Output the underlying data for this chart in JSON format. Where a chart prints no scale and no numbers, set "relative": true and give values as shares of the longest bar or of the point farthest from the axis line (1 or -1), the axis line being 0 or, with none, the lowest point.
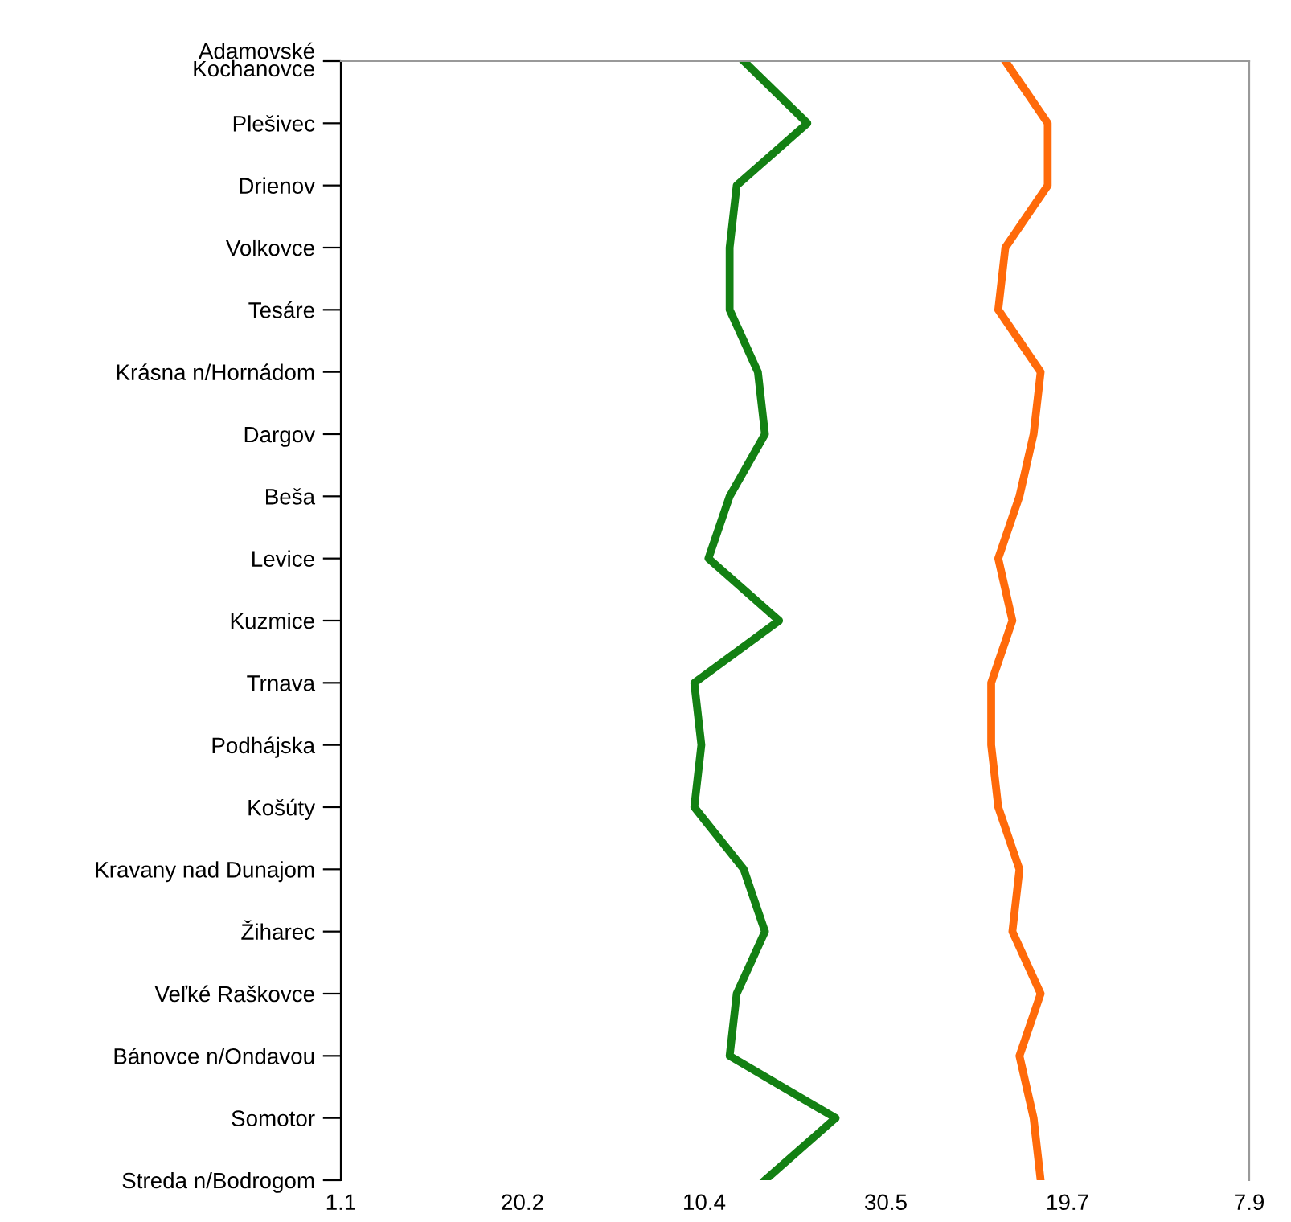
{
  "chart_data": {
    "type": "line",
    "orientation": "horizontal",
    "relative": true,
    "categories": [
      "Adamovské\nKochanovce",
      "Plešivec",
      "Drienov",
      "Volkovce",
      "Tesáre",
      "Krásna n/Hornádom",
      "Dargov",
      "Beša",
      "Levice",
      "Kuzmice",
      "Trnava",
      "Podhájska",
      "Košúty",
      "Kravany nad Dunajom",
      "Žiharec",
      "Veľké Raškovce",
      "Bánovce n/Ondavou",
      "Somotor",
      "Streda n/Bodrogom"
    ],
    "series": [
      {
        "color": "#138013",
        "values": [
          0.57,
          0.66,
          0.56,
          0.55,
          0.55,
          0.59,
          0.6,
          0.55,
          0.52,
          0.62,
          0.5,
          0.51,
          0.5,
          0.57,
          0.6,
          0.56,
          0.55,
          0.7,
          0.6
        ]
      },
      {
        "color": "#ff6a0a",
        "values": [
          0.94,
          1.0,
          1.0,
          0.94,
          0.93,
          0.99,
          0.98,
          0.96,
          0.93,
          0.95,
          0.92,
          0.92,
          0.93,
          0.96,
          0.95,
          0.99,
          0.96,
          0.98,
          0.99
        ]
      }
    ],
    "annotations": [
      "1.1",
      "20.2",
      "10.4",
      "30.5",
      "19.7",
      "7.9"
    ],
    "grid": false,
    "legend": false,
    "marker": "none",
    "line_style": "solid"
  }
}
